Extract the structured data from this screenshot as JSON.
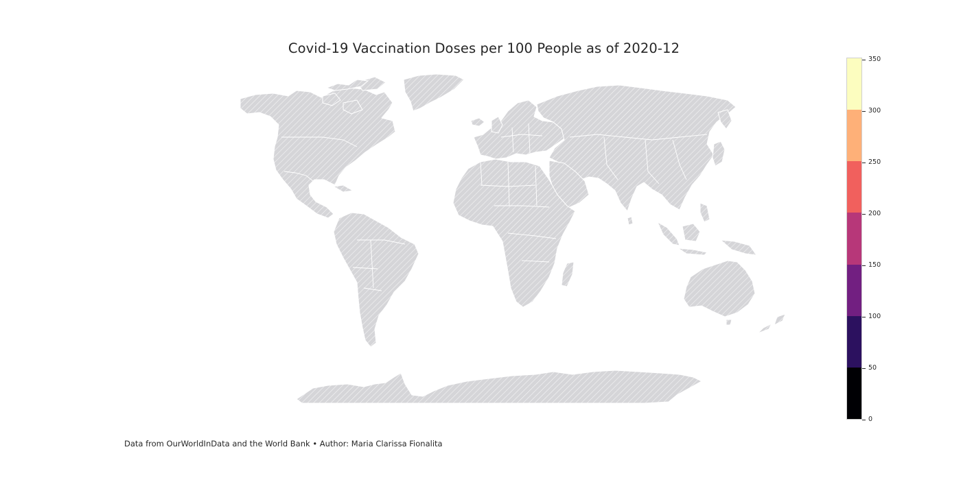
{
  "title": "Covid-19 Vaccination Doses per 100 People as of 2020-12",
  "footer": "Data from OurWorldInData and the World Bank • Author: Maria Clarissa Fionalita",
  "map": {
    "projection": "equirectangular",
    "region": "world",
    "no_data_style": "light grey with white diagonal hatching",
    "no_data_color": "#d5d5d8",
    "colored_countries": []
  },
  "colorbar": {
    "colormap": "magma",
    "ticks": [
      "0",
      "50",
      "100",
      "150",
      "200",
      "250",
      "300",
      "350"
    ],
    "bins": [
      {
        "from": 0,
        "to": 50,
        "color": "#000004"
      },
      {
        "from": 50,
        "to": 100,
        "color": "#2c115f"
      },
      {
        "from": 100,
        "to": 150,
        "color": "#721f81"
      },
      {
        "from": 150,
        "to": 200,
        "color": "#b73779"
      },
      {
        "from": 200,
        "to": 250,
        "color": "#f1605d"
      },
      {
        "from": 250,
        "to": 300,
        "color": "#feb078"
      },
      {
        "from": 300,
        "to": 350,
        "color": "#fcfdbf"
      }
    ]
  }
}
